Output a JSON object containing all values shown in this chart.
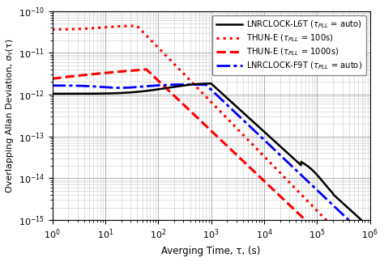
{
  "xlabel": "Averging Time, τ, (s)",
  "ylabel": "Overlapping Allan Deviation, σᵧ(τ)",
  "xlim": [
    1,
    1000000
  ],
  "ylim": [
    1e-15,
    1e-10
  ],
  "bg_color": "#ffffff",
  "grid_minor_color": "#c8c8c8",
  "grid_major_color": "#999999"
}
